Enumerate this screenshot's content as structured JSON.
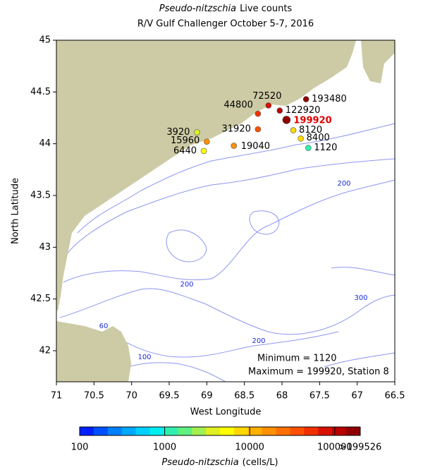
{
  "chart_data": {
    "type": "scatter",
    "title_organism": "Pseudo-nitzschia",
    "title_suffix": "Live counts",
    "subtitle": "R/V Gulf Challenger October 5-7, 2016",
    "x_label": "West Longitude",
    "y_label": "North Latitude",
    "xlim": [
      71,
      66.5
    ],
    "ylim": [
      41.7,
      45
    ],
    "xticks": [
      71,
      70.5,
      70,
      69.5,
      69,
      68.5,
      68,
      67.5,
      67,
      66.5
    ],
    "yticks": [
      45,
      44.5,
      44,
      43.5,
      43,
      42.5,
      42
    ],
    "x": [
      69.13,
      69.0,
      69.04,
      68.64,
      68.32,
      68.32,
      68.18,
      68.03,
      67.68,
      67.94,
      67.85,
      67.75,
      67.65
    ],
    "y": [
      44.11,
      44.02,
      43.93,
      43.98,
      44.14,
      44.29,
      44.37,
      44.32,
      44.43,
      44.23,
      44.13,
      44.05,
      43.96
    ],
    "values": [
      3920,
      15960,
      6440,
      19040,
      31920,
      44800,
      72520,
      122920,
      193480,
      199920,
      8120,
      8400,
      1120
    ],
    "land_color": "#cdcba5",
    "contour_color": "#8c96f0",
    "contour_labels": [
      200,
      200,
      300,
      200,
      60,
      100
    ],
    "annotations": [
      "Minimum = 1120",
      "Maximum = 199920, Station 8"
    ],
    "colorbar": {
      "log": true,
      "lim": [
        100,
        199526
      ],
      "ticks": [
        100,
        1000,
        10000,
        100000,
        {
          "value": 199526,
          "label": ">199526"
        }
      ],
      "colors": [
        "#0020ff",
        "#0050ff",
        "#0080ff",
        "#00a8ff",
        "#00d0ff",
        "#00f0f0",
        "#30f0b0",
        "#60f080",
        "#a0f050",
        "#e0f020",
        "#ffff00",
        "#ffd800",
        "#ffb000",
        "#ff9000",
        "#ff7000",
        "#ff5000",
        "#f03000",
        "#d81000",
        "#b80000",
        "#900000"
      ],
      "label_organism": "Pseudo-nitzschia",
      "label_suffix": "(cells/L)"
    }
  }
}
